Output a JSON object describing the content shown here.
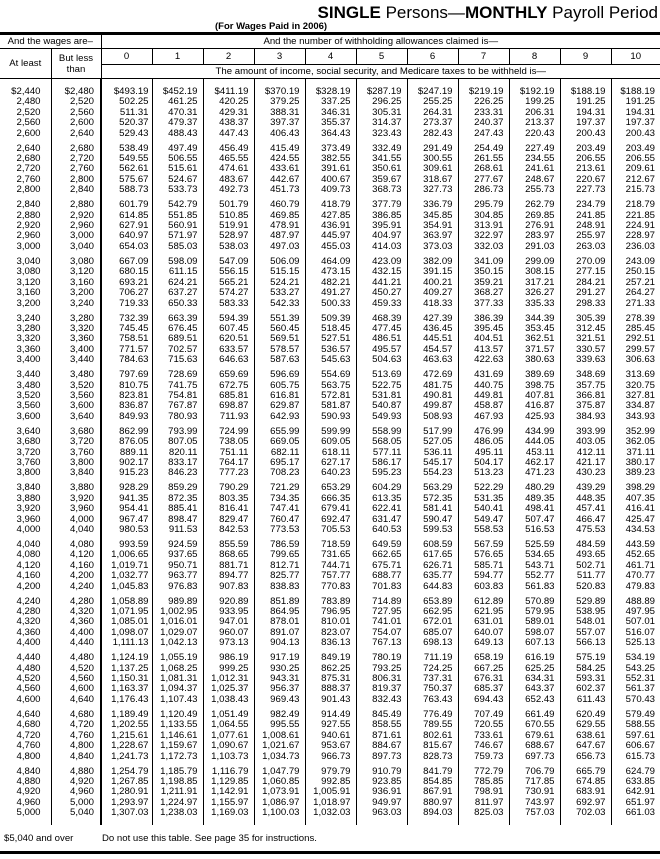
{
  "title": {
    "bold1": "SINGLE",
    "normal1": " Persons—",
    "bold2": "MONTHLY",
    "normal2": " Payroll Period"
  },
  "subtitle": "(For Wages Paid in 2006)",
  "header": {
    "wages_are": "And the wages are–",
    "allowances": "And the number of withholding allowances claimed is—",
    "at_least": "At least",
    "but_less_than": "But less than",
    "allowance_numbers": [
      "0",
      "1",
      "2",
      "3",
      "4",
      "5",
      "6",
      "7",
      "8",
      "9",
      "10"
    ],
    "amount_note": "The amount of income, social security, and Medicare taxes to be withheld is—"
  },
  "rows": [
    [
      "$2,440",
      "$2,480",
      "$493.19",
      "$452.19",
      "$411.19",
      "$370.19",
      "$328.19",
      "$287.19",
      "$247.19",
      "$219.19",
      "$192.19",
      "$188.19",
      "$188.19"
    ],
    [
      "2,480",
      "2,520",
      "502.25",
      "461.25",
      "420.25",
      "379.25",
      "337.25",
      "296.25",
      "255.25",
      "226.25",
      "199.25",
      "191.25",
      "191.25"
    ],
    [
      "2,520",
      "2,560",
      "511.31",
      "470.31",
      "429.31",
      "388.31",
      "346.31",
      "305.31",
      "264.31",
      "233.31",
      "206.31",
      "194.31",
      "194.31"
    ],
    [
      "2,560",
      "2,600",
      "520.37",
      "479.37",
      "438.37",
      "397.37",
      "355.37",
      "314.37",
      "273.37",
      "240.37",
      "213.37",
      "197.37",
      "197.37"
    ],
    [
      "2,600",
      "2,640",
      "529.43",
      "488.43",
      "447.43",
      "406.43",
      "364.43",
      "323.43",
      "282.43",
      "247.43",
      "220.43",
      "200.43",
      "200.43"
    ],
    [
      "2,640",
      "2,680",
      "538.49",
      "497.49",
      "456.49",
      "415.49",
      "373.49",
      "332.49",
      "291.49",
      "254.49",
      "227.49",
      "203.49",
      "203.49"
    ],
    [
      "2,680",
      "2,720",
      "549.55",
      "506.55",
      "465.55",
      "424.55",
      "382.55",
      "341.55",
      "300.55",
      "261.55",
      "234.55",
      "206.55",
      "206.55"
    ],
    [
      "2,720",
      "2,760",
      "562.61",
      "515.61",
      "474.61",
      "433.61",
      "391.61",
      "350.61",
      "309.61",
      "268.61",
      "241.61",
      "213.61",
      "209.61"
    ],
    [
      "2,760",
      "2,800",
      "575.67",
      "524.67",
      "483.67",
      "442.67",
      "400.67",
      "359.67",
      "318.67",
      "277.67",
      "248.67",
      "220.67",
      "212.67"
    ],
    [
      "2,800",
      "2,840",
      "588.73",
      "533.73",
      "492.73",
      "451.73",
      "409.73",
      "368.73",
      "327.73",
      "286.73",
      "255.73",
      "227.73",
      "215.73"
    ],
    [
      "2,840",
      "2,880",
      "601.79",
      "542.79",
      "501.79",
      "460.79",
      "418.79",
      "377.79",
      "336.79",
      "295.79",
      "262.79",
      "234.79",
      "218.79"
    ],
    [
      "2,880",
      "2,920",
      "614.85",
      "551.85",
      "510.85",
      "469.85",
      "427.85",
      "386.85",
      "345.85",
      "304.85",
      "269.85",
      "241.85",
      "221.85"
    ],
    [
      "2,920",
      "2,960",
      "627.91",
      "560.91",
      "519.91",
      "478.91",
      "436.91",
      "395.91",
      "354.91",
      "313.91",
      "276.91",
      "248.91",
      "224.91"
    ],
    [
      "2,960",
      "3,000",
      "640.97",
      "571.97",
      "528.97",
      "487.97",
      "445.97",
      "404.97",
      "363.97",
      "322.97",
      "283.97",
      "255.97",
      "228.97"
    ],
    [
      "3,000",
      "3,040",
      "654.03",
      "585.03",
      "538.03",
      "497.03",
      "455.03",
      "414.03",
      "373.03",
      "332.03",
      "291.03",
      "263.03",
      "236.03"
    ],
    [
      "3,040",
      "3,080",
      "667.09",
      "598.09",
      "547.09",
      "506.09",
      "464.09",
      "423.09",
      "382.09",
      "341.09",
      "299.09",
      "270.09",
      "243.09"
    ],
    [
      "3,080",
      "3,120",
      "680.15",
      "611.15",
      "556.15",
      "515.15",
      "473.15",
      "432.15",
      "391.15",
      "350.15",
      "308.15",
      "277.15",
      "250.15"
    ],
    [
      "3,120",
      "3,160",
      "693.21",
      "624.21",
      "565.21",
      "524.21",
      "482.21",
      "441.21",
      "400.21",
      "359.21",
      "317.21",
      "284.21",
      "257.21"
    ],
    [
      "3,160",
      "3,200",
      "706.27",
      "637.27",
      "574.27",
      "533.27",
      "491.27",
      "450.27",
      "409.27",
      "368.27",
      "326.27",
      "291.27",
      "264.27"
    ],
    [
      "3,200",
      "3,240",
      "719.33",
      "650.33",
      "583.33",
      "542.33",
      "500.33",
      "459.33",
      "418.33",
      "377.33",
      "335.33",
      "298.33",
      "271.33"
    ],
    [
      "3,240",
      "3,280",
      "732.39",
      "663.39",
      "594.39",
      "551.39",
      "509.39",
      "468.39",
      "427.39",
      "386.39",
      "344.39",
      "305.39",
      "278.39"
    ],
    [
      "3,280",
      "3,320",
      "745.45",
      "676.45",
      "607.45",
      "560.45",
      "518.45",
      "477.45",
      "436.45",
      "395.45",
      "353.45",
      "312.45",
      "285.45"
    ],
    [
      "3,320",
      "3,360",
      "758.51",
      "689.51",
      "620.51",
      "569.51",
      "527.51",
      "486.51",
      "445.51",
      "404.51",
      "362.51",
      "321.51",
      "292.51"
    ],
    [
      "3,360",
      "3,400",
      "771.57",
      "702.57",
      "633.57",
      "578.57",
      "536.57",
      "495.57",
      "454.57",
      "413.57",
      "371.57",
      "330.57",
      "299.57"
    ],
    [
      "3,400",
      "3,440",
      "784.63",
      "715.63",
      "646.63",
      "587.63",
      "545.63",
      "504.63",
      "463.63",
      "422.63",
      "380.63",
      "339.63",
      "306.63"
    ],
    [
      "3,440",
      "3,480",
      "797.69",
      "728.69",
      "659.69",
      "596.69",
      "554.69",
      "513.69",
      "472.69",
      "431.69",
      "389.69",
      "348.69",
      "313.69"
    ],
    [
      "3,480",
      "3,520",
      "810.75",
      "741.75",
      "672.75",
      "605.75",
      "563.75",
      "522.75",
      "481.75",
      "440.75",
      "398.75",
      "357.75",
      "320.75"
    ],
    [
      "3,520",
      "3,560",
      "823.81",
      "754.81",
      "685.81",
      "616.81",
      "572.81",
      "531.81",
      "490.81",
      "449.81",
      "407.81",
      "366.81",
      "327.81"
    ],
    [
      "3,560",
      "3,600",
      "836.87",
      "767.87",
      "698.87",
      "629.87",
      "581.87",
      "540.87",
      "499.87",
      "458.87",
      "416.87",
      "375.87",
      "334.87"
    ],
    [
      "3,600",
      "3,640",
      "849.93",
      "780.93",
      "711.93",
      "642.93",
      "590.93",
      "549.93",
      "508.93",
      "467.93",
      "425.93",
      "384.93",
      "343.93"
    ],
    [
      "3,640",
      "3,680",
      "862.99",
      "793.99",
      "724.99",
      "655.99",
      "599.99",
      "558.99",
      "517.99",
      "476.99",
      "434.99",
      "393.99",
      "352.99"
    ],
    [
      "3,680",
      "3,720",
      "876.05",
      "807.05",
      "738.05",
      "669.05",
      "609.05",
      "568.05",
      "527.05",
      "486.05",
      "444.05",
      "403.05",
      "362.05"
    ],
    [
      "3,720",
      "3,760",
      "889.11",
      "820.11",
      "751.11",
      "682.11",
      "618.11",
      "577.11",
      "536.11",
      "495.11",
      "453.11",
      "412.11",
      "371.11"
    ],
    [
      "3,760",
      "3,800",
      "902.17",
      "833.17",
      "764.17",
      "695.17",
      "627.17",
      "586.17",
      "545.17",
      "504.17",
      "462.17",
      "421.17",
      "380.17"
    ],
    [
      "3,800",
      "3,840",
      "915.23",
      "846.23",
      "777.23",
      "708.23",
      "640.23",
      "595.23",
      "554.23",
      "513.23",
      "471.23",
      "430.23",
      "389.23"
    ],
    [
      "3,840",
      "3,880",
      "928.29",
      "859.29",
      "790.29",
      "721.29",
      "653.29",
      "604.29",
      "563.29",
      "522.29",
      "480.29",
      "439.29",
      "398.29"
    ],
    [
      "3,880",
      "3,920",
      "941.35",
      "872.35",
      "803.35",
      "734.35",
      "666.35",
      "613.35",
      "572.35",
      "531.35",
      "489.35",
      "448.35",
      "407.35"
    ],
    [
      "3,920",
      "3,960",
      "954.41",
      "885.41",
      "816.41",
      "747.41",
      "679.41",
      "622.41",
      "581.41",
      "540.41",
      "498.41",
      "457.41",
      "416.41"
    ],
    [
      "3,960",
      "4,000",
      "967.47",
      "898.47",
      "829.47",
      "760.47",
      "692.47",
      "631.47",
      "590.47",
      "549.47",
      "507.47",
      "466.47",
      "425.47"
    ],
    [
      "4,000",
      "4,040",
      "980.53",
      "911.53",
      "842.53",
      "773.53",
      "705.53",
      "640.53",
      "599.53",
      "558.53",
      "516.53",
      "475.53",
      "434.53"
    ],
    [
      "4,040",
      "4,080",
      "993.59",
      "924.59",
      "855.59",
      "786.59",
      "718.59",
      "649.59",
      "608.59",
      "567.59",
      "525.59",
      "484.59",
      "443.59"
    ],
    [
      "4,080",
      "4,120",
      "1,006.65",
      "937.65",
      "868.65",
      "799.65",
      "731.65",
      "662.65",
      "617.65",
      "576.65",
      "534.65",
      "493.65",
      "452.65"
    ],
    [
      "4,120",
      "4,160",
      "1,019.71",
      "950.71",
      "881.71",
      "812.71",
      "744.71",
      "675.71",
      "626.71",
      "585.71",
      "543.71",
      "502.71",
      "461.71"
    ],
    [
      "4,160",
      "4,200",
      "1,032.77",
      "963.77",
      "894.77",
      "825.77",
      "757.77",
      "688.77",
      "635.77",
      "594.77",
      "552.77",
      "511.77",
      "470.77"
    ],
    [
      "4,200",
      "4,240",
      "1,045.83",
      "976.83",
      "907.83",
      "838.83",
      "770.83",
      "701.83",
      "644.83",
      "603.83",
      "561.83",
      "520.83",
      "479.83"
    ],
    [
      "4,240",
      "4,280",
      "1,058.89",
      "989.89",
      "920.89",
      "851.89",
      "783.89",
      "714.89",
      "653.89",
      "612.89",
      "570.89",
      "529.89",
      "488.89"
    ],
    [
      "4,280",
      "4,320",
      "1,071.95",
      "1,002.95",
      "933.95",
      "864.95",
      "796.95",
      "727.95",
      "662.95",
      "621.95",
      "579.95",
      "538.95",
      "497.95"
    ],
    [
      "4,320",
      "4,360",
      "1,085.01",
      "1,016.01",
      "947.01",
      "878.01",
      "810.01",
      "741.01",
      "672.01",
      "631.01",
      "589.01",
      "548.01",
      "507.01"
    ],
    [
      "4,360",
      "4,400",
      "1,098.07",
      "1,029.07",
      "960.07",
      "891.07",
      "823.07",
      "754.07",
      "685.07",
      "640.07",
      "598.07",
      "557.07",
      "516.07"
    ],
    [
      "4,400",
      "4,440",
      "1,111.13",
      "1,042.13",
      "973.13",
      "904.13",
      "836.13",
      "767.13",
      "698.13",
      "649.13",
      "607.13",
      "566.13",
      "525.13"
    ],
    [
      "4,440",
      "4,480",
      "1,124.19",
      "1,055.19",
      "986.19",
      "917.19",
      "849.19",
      "780.19",
      "711.19",
      "658.19",
      "616.19",
      "575.19",
      "534.19"
    ],
    [
      "4,480",
      "4,520",
      "1,137.25",
      "1,068.25",
      "999.25",
      "930.25",
      "862.25",
      "793.25",
      "724.25",
      "667.25",
      "625.25",
      "584.25",
      "543.25"
    ],
    [
      "4,520",
      "4,560",
      "1,150.31",
      "1,081.31",
      "1,012.31",
      "943.31",
      "875.31",
      "806.31",
      "737.31",
      "676.31",
      "634.31",
      "593.31",
      "552.31"
    ],
    [
      "4,560",
      "4,600",
      "1,163.37",
      "1,094.37",
      "1,025.37",
      "956.37",
      "888.37",
      "819.37",
      "750.37",
      "685.37",
      "643.37",
      "602.37",
      "561.37"
    ],
    [
      "4,600",
      "4,640",
      "1,176.43",
      "1,107.43",
      "1,038.43",
      "969.43",
      "901.43",
      "832.43",
      "763.43",
      "694.43",
      "652.43",
      "611.43",
      "570.43"
    ],
    [
      "4,640",
      "4,680",
      "1,189.49",
      "1,120.49",
      "1,051.49",
      "982.49",
      "914.49",
      "845.49",
      "776.49",
      "707.49",
      "661.49",
      "620.49",
      "579.49"
    ],
    [
      "4,680",
      "4,720",
      "1,202.55",
      "1,133.55",
      "1,064.55",
      "995.55",
      "927.55",
      "858.55",
      "789.55",
      "720.55",
      "670.55",
      "629.55",
      "588.55"
    ],
    [
      "4,720",
      "4,760",
      "1,215.61",
      "1,146.61",
      "1,077.61",
      "1,008.61",
      "940.61",
      "871.61",
      "802.61",
      "733.61",
      "679.61",
      "638.61",
      "597.61"
    ],
    [
      "4,760",
      "4,800",
      "1,228.67",
      "1,159.67",
      "1,090.67",
      "1,021.67",
      "953.67",
      "884.67",
      "815.67",
      "746.67",
      "688.67",
      "647.67",
      "606.67"
    ],
    [
      "4,800",
      "4,840",
      "1,241.73",
      "1,172.73",
      "1,103.73",
      "1,034.73",
      "966.73",
      "897.73",
      "828.73",
      "759.73",
      "697.73",
      "656.73",
      "615.73"
    ],
    [
      "4,840",
      "4,880",
      "1,254.79",
      "1,185.79",
      "1,116.79",
      "1,047.79",
      "979.79",
      "910.79",
      "841.79",
      "772.79",
      "706.79",
      "665.79",
      "624.79"
    ],
    [
      "4,880",
      "4,920",
      "1,267.85",
      "1,198.85",
      "1,129.85",
      "1,060.85",
      "992.85",
      "923.85",
      "854.85",
      "785.85",
      "717.85",
      "674.85",
      "633.85"
    ],
    [
      "4,920",
      "4,960",
      "1,280.91",
      "1,211.91",
      "1,142.91",
      "1,073.91",
      "1,005.91",
      "936.91",
      "867.91",
      "798.91",
      "730.91",
      "683.91",
      "642.91"
    ],
    [
      "4,960",
      "5,000",
      "1,293.97",
      "1,224.97",
      "1,155.97",
      "1,086.97",
      "1,018.97",
      "949.97",
      "880.97",
      "811.97",
      "743.97",
      "692.97",
      "651.97"
    ],
    [
      "5,000",
      "5,040",
      "1,307.03",
      "1,238.03",
      "1,169.03",
      "1,100.03",
      "1,032.03",
      "963.03",
      "894.03",
      "825.03",
      "757.03",
      "702.03",
      "661.03"
    ]
  ],
  "footer": {
    "range": "$5,040 and over",
    "note": "Do not use this table. See page 35 for instructions."
  }
}
